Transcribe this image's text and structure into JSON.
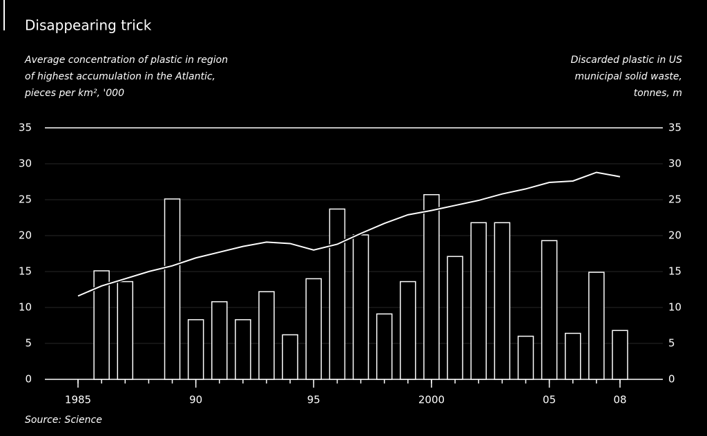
{
  "chart_data": {
    "type": "bar-line",
    "title": "Disappearing trick",
    "left_label": [
      "Average concentration of plastic in region",
      "of highest accumulation in the Atlantic,",
      "pieces per km², '000"
    ],
    "right_label": [
      "Discarded plastic in US",
      "municipal solid waste,",
      "tonnes, m"
    ],
    "source": "Source: Science",
    "x": [
      1985,
      1986,
      1987,
      1988,
      1989,
      1990,
      1991,
      1992,
      1993,
      1994,
      1995,
      1996,
      1997,
      1998,
      1999,
      2000,
      2001,
      2002,
      2003,
      2004,
      2005,
      2006,
      2007,
      2008
    ],
    "xlim": [
      1985,
      2008
    ],
    "xticks": [
      1985,
      {
        "value": 1990,
        "label": "90"
      },
      {
        "value": 1995,
        "label": "95"
      },
      2000,
      {
        "value": 2005,
        "label": "05"
      },
      {
        "value": 2008,
        "label": "08"
      }
    ],
    "series": [
      {
        "name": "Plastic concentration",
        "color": "#000000",
        "values": [
          null,
          15.1,
          13.6,
          null,
          25.1,
          8.3,
          10.8,
          8.3,
          12.2,
          6.2,
          14.0,
          23.7,
          20.1,
          9.1,
          13.6,
          25.7,
          17.1,
          21.8,
          21.8,
          6.0,
          19.3,
          6.4,
          14.9,
          6.8
        ]
      },
      {
        "name": "Discarded plastic",
        "color": "#ffffff",
        "axis": "y2",
        "values": [
          11.6,
          13.0,
          14.0,
          15.0,
          15.8,
          16.9,
          17.7,
          18.5,
          19.1,
          18.9,
          18.0,
          18.8,
          20.3,
          21.7,
          22.9,
          23.5,
          24.2,
          24.9,
          25.8,
          26.5,
          27.4,
          27.6,
          28.8,
          28.2
        ]
      }
    ],
    "ylim": [
      0,
      35
    ],
    "yticks": [
      0,
      5,
      10,
      15,
      20,
      25,
      30,
      35
    ],
    "y2lim": [
      0,
      35
    ],
    "y2ticks": [
      0,
      5,
      10,
      15,
      20,
      25,
      30,
      35
    ],
    "grid": true
  }
}
